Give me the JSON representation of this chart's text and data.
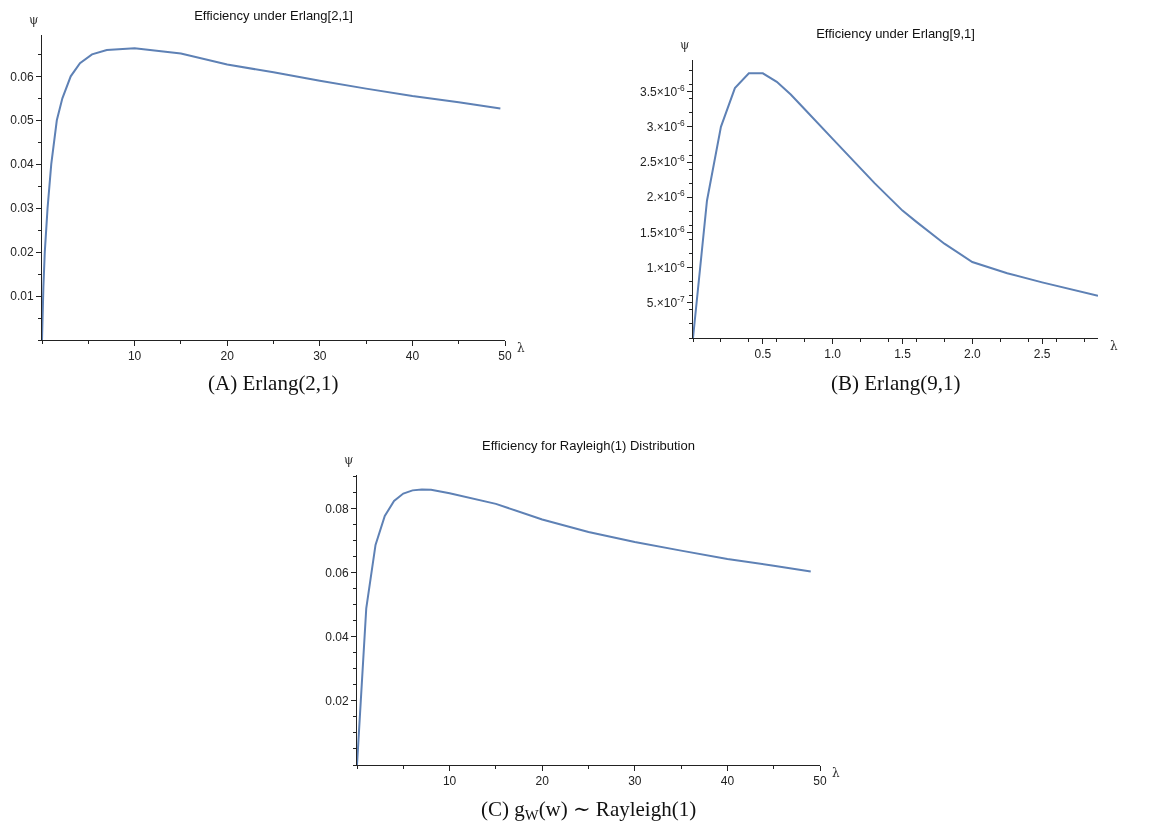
{
  "chart_data": [
    {
      "type": "line",
      "title": "Efficiency under Erlang[2,1]",
      "xlabel": "λ",
      "ylabel": "ψ",
      "annotations": [
        "(A) Erlang(2,1)"
      ],
      "x": [
        0,
        0.15,
        0.3,
        0.6,
        1.0,
        1.6,
        2.2,
        3.1,
        4.1,
        5.4,
        7,
        10,
        15,
        20,
        25,
        30,
        35,
        40,
        45,
        49.5
      ],
      "series": [
        {
          "color": "#5e81b5",
          "values": [
            0,
            0.012,
            0.02,
            0.03,
            0.04,
            0.05,
            0.055,
            0.06,
            0.063,
            0.065,
            0.066,
            0.0664,
            0.0652,
            0.0627,
            0.0609,
            0.059,
            0.0572,
            0.0555,
            0.0541,
            0.0527
          ]
        }
      ],
      "xlim": [
        0,
        50
      ],
      "xticks": [
        10,
        20,
        30,
        40,
        50
      ],
      "ylim": [
        0,
        0.0694
      ],
      "yticks": [
        0.01,
        0.02,
        0.03,
        0.04,
        0.05,
        0.06
      ],
      "marker": "none",
      "line_style": "solid"
    },
    {
      "type": "line",
      "title": "Efficiency under Erlang[9,1]",
      "xlabel": "λ",
      "ylabel": "ψ",
      "annotations": [
        "(B) Erlang(9,1)"
      ],
      "x": [
        0,
        0.1,
        0.2,
        0.3,
        0.4,
        0.5,
        0.6,
        0.7,
        0.8,
        1.0,
        1.2,
        1.3,
        1.5,
        1.6,
        1.8,
        2.0,
        2.25,
        2.5,
        2.9
      ],
      "series": [
        {
          "color": "#5e81b5",
          "values": [
            0,
            1.95e-06,
            3e-06,
            3.55e-06,
            3.76e-06,
            3.76e-06,
            3.64e-06,
            3.46e-06,
            3.25e-06,
            2.83e-06,
            2.41e-06,
            2.2e-06,
            1.81e-06,
            1.65e-06,
            1.34e-06,
            1.08e-06,
            9.2e-07,
            7.9e-07,
            6e-07
          ]
        }
      ],
      "xlim": [
        0,
        2.9
      ],
      "xticks": [
        {
          "value": 0.5,
          "label": "0.5"
        },
        {
          "value": 1,
          "label": "1.0"
        },
        {
          "value": 1.5,
          "label": "1.5"
        },
        {
          "value": 2,
          "label": "2.0"
        },
        {
          "value": 2.5,
          "label": "2.5"
        }
      ],
      "ylim": [
        0,
        3.95e-06
      ],
      "yticks": [
        {
          "value": 5e-07,
          "label": "5.×10$^{-7}$"
        },
        {
          "value": 1e-06,
          "label": "1.×10$^{-6}$"
        },
        {
          "value": 1.5e-06,
          "label": "1.5×10$^{-6}$"
        },
        {
          "value": 2e-06,
          "label": "2.×10$^{-6}$"
        },
        {
          "value": 2.5e-06,
          "label": "2.5×10$^{-6}$"
        },
        {
          "value": 3e-06,
          "label": "3.×10$^{-6}$"
        },
        {
          "value": 3.5e-06,
          "label": "3.5×10$^{-6}$"
        }
      ],
      "marker": "none",
      "line_style": "solid"
    },
    {
      "type": "line",
      "title": "Efficiency for Rayleigh(1) Distribution",
      "xlabel": "λ",
      "ylabel": "ψ",
      "annotations": [
        "(C) g$_{W}$(w) ∼ Rayleigh(1)"
      ],
      "x": [
        0,
        1,
        2,
        3,
        4,
        5,
        6,
        7,
        8,
        10,
        15,
        20,
        25,
        30,
        35,
        40,
        45,
        49
      ],
      "series": [
        {
          "color": "#5e81b5",
          "values": [
            0,
            0.0489,
            0.0687,
            0.0777,
            0.0824,
            0.0847,
            0.0857,
            0.086,
            0.0859,
            0.0848,
            0.0815,
            0.0766,
            0.0727,
            0.0696,
            0.0669,
            0.0643,
            0.0622,
            0.0604
          ]
        }
      ],
      "xlim": [
        0,
        50
      ],
      "xticks": [
        10,
        20,
        30,
        40,
        50
      ],
      "ylim": [
        0,
        0.0905
      ],
      "yticks": [
        0.02,
        0.04,
        0.06,
        0.08
      ],
      "marker": "none",
      "line_style": "solid"
    }
  ]
}
